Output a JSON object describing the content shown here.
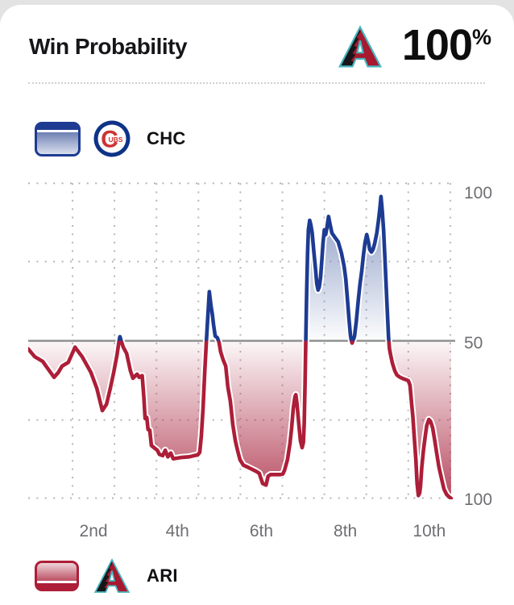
{
  "header": {
    "title": "Win Probability",
    "team_logo": "arizona-diamondbacks",
    "win_pct_value": "100",
    "win_pct_symbol": "%"
  },
  "legend_top": {
    "team_abbr": "CHC",
    "logo": "chicago-cubs",
    "logo_letter": "C",
    "logo_letters_small": "UBS"
  },
  "legend_bottom": {
    "team_abbr": "ARI",
    "logo": "arizona-diamondbacks"
  },
  "colors": {
    "chc_line": "#1d3b92",
    "ari_line": "#ad1e38",
    "chc_fill": "#7386b8",
    "ari_fill": "#b13b52",
    "fifty_line": "#909090",
    "grid_dots": "#b6b6b6",
    "axis_text": "#6f6f73",
    "cubs_blue": "#0e3386",
    "cubs_red": "#cc3433",
    "dbacks_red": "#a71930",
    "dbacks_teal": "#45b5bd"
  },
  "chart_data": {
    "type": "area",
    "title": "Win Probability",
    "series_name": "CHC win probability (%) — above 50 = CHC favored (blue), below 50 = ARI favored (red)",
    "x_axis": {
      "unit": "inning",
      "range_innings": [
        0,
        10
      ],
      "labels": [
        "2nd",
        "4th",
        "6th",
        "8th",
        "10th"
      ],
      "label_center_innings": [
        1.5,
        3.5,
        5.5,
        7.5,
        9.5
      ],
      "gridline_innings": [
        1,
        2,
        3,
        4,
        5,
        6,
        7,
        8,
        9,
        10
      ],
      "grid": "dotted"
    },
    "y_axis": {
      "ticks": [
        "100",
        "50",
        "100"
      ],
      "meaning": "top 100 = CHC 100%, bottom 100 = ARI 100%",
      "quarter_gridlines": "dotted at 75 and 25, solid line at 50",
      "legend_position": "right"
    },
    "final_result": "ARI 100%",
    "points": [
      [
        -0.06,
        47.5
      ],
      [
        0.1,
        45.0
      ],
      [
        0.29,
        43.5
      ],
      [
        0.37,
        42.0
      ],
      [
        0.56,
        38.5
      ],
      [
        0.66,
        40.0
      ],
      [
        0.75,
        42.0
      ],
      [
        0.9,
        43.2
      ],
      [
        1.06,
        48.0
      ],
      [
        1.23,
        45.0
      ],
      [
        1.44,
        40.0
      ],
      [
        1.58,
        35.0
      ],
      [
        1.71,
        28.0
      ],
      [
        1.81,
        30.0
      ],
      [
        1.9,
        35.0
      ],
      [
        1.98,
        40.0
      ],
      [
        2.06,
        45.5
      ],
      [
        2.11,
        50.0
      ],
      [
        2.13,
        51.3
      ],
      [
        2.16,
        50.0
      ],
      [
        2.21,
        48.0
      ],
      [
        2.29,
        46.0
      ],
      [
        2.38,
        40.5
      ],
      [
        2.44,
        38.2
      ],
      [
        2.5,
        39.0
      ],
      [
        2.54,
        39.5
      ],
      [
        2.59,
        38.5
      ],
      [
        2.66,
        39.0
      ],
      [
        2.7,
        32.0
      ],
      [
        2.73,
        25.5
      ],
      [
        2.77,
        25.8
      ],
      [
        2.8,
        22.0
      ],
      [
        2.84,
        21.8
      ],
      [
        2.88,
        17.0
      ],
      [
        2.95,
        16.2
      ],
      [
        3.02,
        15.5
      ],
      [
        3.07,
        14.2
      ],
      [
        3.15,
        13.8
      ],
      [
        3.21,
        15.5
      ],
      [
        3.27,
        13.4
      ],
      [
        3.34,
        14.6
      ],
      [
        3.4,
        12.8
      ],
      [
        3.5,
        13.0
      ],
      [
        3.59,
        13.2
      ],
      [
        3.78,
        13.4
      ],
      [
        3.9,
        13.8
      ],
      [
        3.98,
        14.0
      ],
      [
        4.03,
        14.8
      ],
      [
        4.07,
        20.0
      ],
      [
        4.11,
        28.5
      ],
      [
        4.15,
        40.0
      ],
      [
        4.19,
        50.0
      ],
      [
        4.22,
        57.0
      ],
      [
        4.26,
        65.5
      ],
      [
        4.3,
        61.0
      ],
      [
        4.33,
        58.5
      ],
      [
        4.36,
        55.0
      ],
      [
        4.4,
        51.5
      ],
      [
        4.45,
        51.0
      ],
      [
        4.49,
        49.6
      ],
      [
        4.53,
        46.5
      ],
      [
        4.59,
        44.0
      ],
      [
        4.65,
        42.0
      ],
      [
        4.7,
        35.5
      ],
      [
        4.76,
        31.0
      ],
      [
        4.82,
        23.5
      ],
      [
        4.88,
        18.5
      ],
      [
        4.93,
        15.5
      ],
      [
        4.99,
        12.5
      ],
      [
        5.07,
        10.8
      ],
      [
        5.15,
        10.3
      ],
      [
        5.26,
        9.6
      ],
      [
        5.38,
        8.8
      ],
      [
        5.45,
        8.2
      ],
      [
        5.53,
        5.0
      ],
      [
        5.61,
        4.5
      ],
      [
        5.66,
        7.3
      ],
      [
        5.72,
        7.8
      ],
      [
        5.84,
        7.8
      ],
      [
        5.95,
        7.8
      ],
      [
        6.01,
        8.0
      ],
      [
        6.05,
        9.1
      ],
      [
        6.12,
        12.5
      ],
      [
        6.18,
        17.6
      ],
      [
        6.22,
        22.6
      ],
      [
        6.26,
        28.6
      ],
      [
        6.3,
        32.4
      ],
      [
        6.32,
        33.0
      ],
      [
        6.35,
        30.0
      ],
      [
        6.39,
        24.0
      ],
      [
        6.43,
        18.5
      ],
      [
        6.47,
        16.3
      ],
      [
        6.5,
        18.0
      ],
      [
        6.52,
        24.0
      ],
      [
        6.54,
        36.0
      ],
      [
        6.56,
        52.0
      ],
      [
        6.58,
        66.0
      ],
      [
        6.6,
        78.0
      ],
      [
        6.62,
        85.0
      ],
      [
        6.65,
        88.0
      ],
      [
        6.68,
        86.5
      ],
      [
        6.71,
        84.0
      ],
      [
        6.75,
        78.0
      ],
      [
        6.79,
        72.5
      ],
      [
        6.82,
        68.0
      ],
      [
        6.85,
        66.0
      ],
      [
        6.88,
        67.0
      ],
      [
        6.91,
        70.0
      ],
      [
        6.94,
        75.5
      ],
      [
        6.97,
        81.0
      ],
      [
        7.0,
        85.0
      ],
      [
        7.03,
        83.5
      ],
      [
        7.06,
        85.5
      ],
      [
        7.1,
        89.2
      ],
      [
        7.14,
        86.5
      ],
      [
        7.18,
        84.0
      ],
      [
        7.26,
        82.5
      ],
      [
        7.33,
        81.2
      ],
      [
        7.41,
        77.5
      ],
      [
        7.47,
        73.5
      ],
      [
        7.51,
        69.5
      ],
      [
        7.55,
        63.0
      ],
      [
        7.59,
        56.5
      ],
      [
        7.62,
        52.0
      ],
      [
        7.64,
        50.3
      ],
      [
        7.66,
        49.3
      ],
      [
        7.69,
        50.3
      ],
      [
        7.72,
        51.5
      ],
      [
        7.76,
        56.0
      ],
      [
        7.81,
        63.0
      ],
      [
        7.85,
        68.0
      ],
      [
        7.89,
        72.0
      ],
      [
        7.93,
        77.0
      ],
      [
        7.97,
        81.0
      ],
      [
        8.01,
        83.5
      ],
      [
        8.05,
        81.2
      ],
      [
        8.08,
        78.8
      ],
      [
        8.12,
        78.0
      ],
      [
        8.16,
        78.8
      ],
      [
        8.2,
        80.7
      ],
      [
        8.25,
        84.0
      ],
      [
        8.29,
        88.0
      ],
      [
        8.32,
        91.5
      ],
      [
        8.35,
        95.5
      ],
      [
        8.38,
        91.0
      ],
      [
        8.41,
        85.0
      ],
      [
        8.44,
        77.0
      ],
      [
        8.47,
        68.0
      ],
      [
        8.5,
        59.0
      ],
      [
        8.53,
        51.0
      ],
      [
        8.55,
        47.5
      ],
      [
        8.58,
        45.5
      ],
      [
        8.62,
        43.0
      ],
      [
        8.68,
        40.5
      ],
      [
        8.73,
        39.2
      ],
      [
        8.79,
        38.6
      ],
      [
        8.87,
        38.1
      ],
      [
        8.95,
        37.7
      ],
      [
        9.0,
        37.4
      ],
      [
        9.04,
        36.0
      ],
      [
        9.08,
        30.0
      ],
      [
        9.11,
        26.0
      ],
      [
        9.14,
        20.0
      ],
      [
        9.18,
        12.5
      ],
      [
        9.21,
        5.0
      ],
      [
        9.24,
        1.2
      ],
      [
        9.27,
        2.0
      ],
      [
        9.29,
        4.0
      ],
      [
        9.32,
        10.0
      ],
      [
        9.36,
        15.5
      ],
      [
        9.4,
        19.5
      ],
      [
        9.44,
        23.3
      ],
      [
        9.49,
        25.2
      ],
      [
        9.53,
        24.6
      ],
      [
        9.58,
        22.6
      ],
      [
        9.63,
        18.6
      ],
      [
        9.68,
        14.3
      ],
      [
        9.73,
        10.2
      ],
      [
        9.79,
        6.6
      ],
      [
        9.85,
        3.2
      ],
      [
        9.91,
        1.6
      ],
      [
        9.96,
        0.9
      ],
      [
        10.02,
        0.3
      ]
    ]
  }
}
